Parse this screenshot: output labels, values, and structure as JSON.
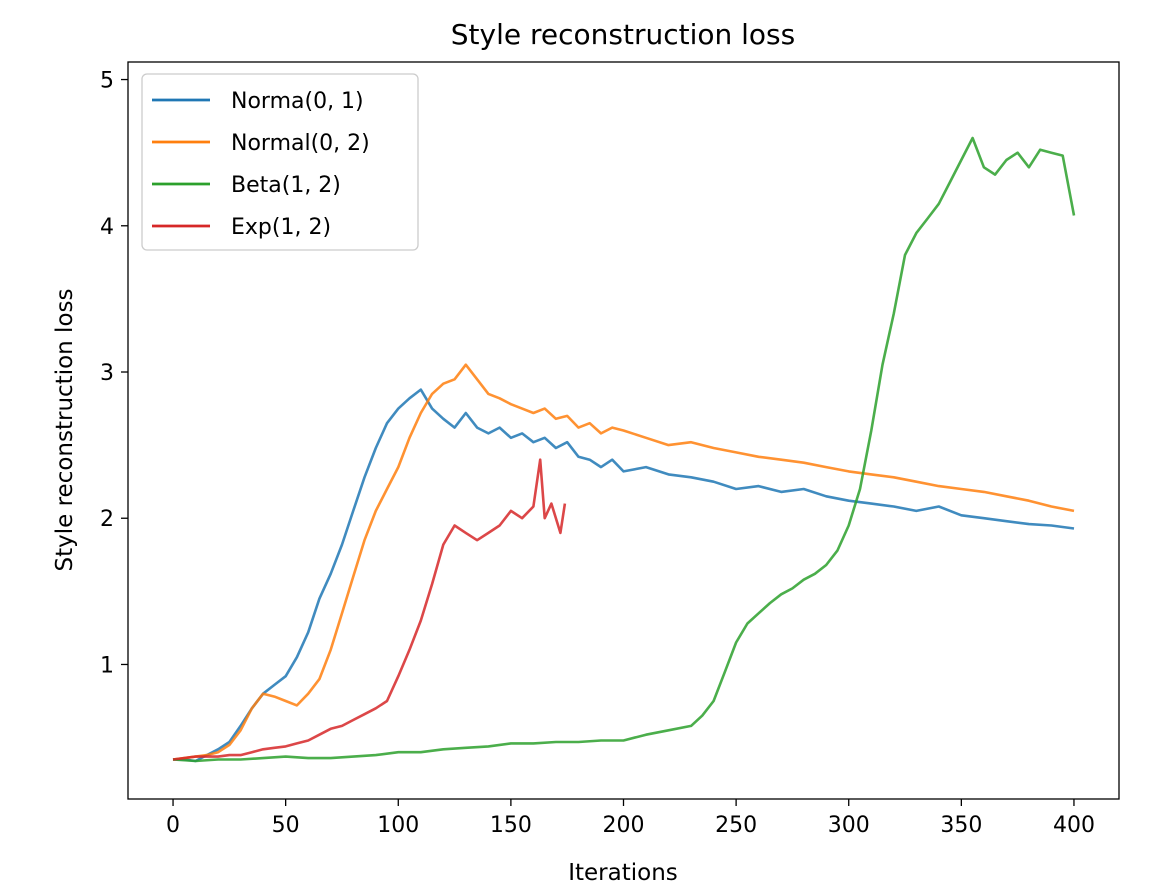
{
  "chart_data": {
    "type": "line",
    "title": "Style reconstruction loss",
    "xlabel": "Iterations",
    "ylabel": "Style reconstruction loss",
    "xlim": [
      -20,
      420
    ],
    "ylim": [
      0.08,
      5.12
    ],
    "xticks": [
      0,
      50,
      100,
      150,
      200,
      250,
      300,
      350,
      400
    ],
    "yticks": [
      1,
      2,
      3,
      4,
      5
    ],
    "grid": false,
    "legend_position": "top-left",
    "series": [
      {
        "name": "Norma(0, 1)",
        "color": "#1f77b4",
        "x": [
          0,
          5,
          10,
          15,
          20,
          25,
          30,
          35,
          40,
          45,
          50,
          55,
          60,
          65,
          70,
          75,
          80,
          85,
          90,
          95,
          100,
          105,
          110,
          115,
          120,
          125,
          130,
          135,
          140,
          145,
          150,
          155,
          160,
          165,
          170,
          175,
          180,
          185,
          190,
          195,
          200,
          210,
          220,
          230,
          240,
          250,
          260,
          270,
          280,
          290,
          300,
          310,
          320,
          330,
          340,
          350,
          360,
          370,
          380,
          390,
          400
        ],
        "y": [
          0.35,
          0.35,
          0.34,
          0.38,
          0.42,
          0.47,
          0.58,
          0.7,
          0.8,
          0.86,
          0.92,
          1.05,
          1.22,
          1.45,
          1.62,
          1.82,
          2.05,
          2.28,
          2.48,
          2.65,
          2.75,
          2.82,
          2.88,
          2.75,
          2.68,
          2.62,
          2.72,
          2.62,
          2.58,
          2.62,
          2.55,
          2.58,
          2.52,
          2.55,
          2.48,
          2.52,
          2.42,
          2.4,
          2.35,
          2.4,
          2.32,
          2.35,
          2.3,
          2.28,
          2.25,
          2.2,
          2.22,
          2.18,
          2.2,
          2.15,
          2.12,
          2.1,
          2.08,
          2.05,
          2.08,
          2.02,
          2.0,
          1.98,
          1.96,
          1.95,
          1.93
        ]
      },
      {
        "name": "Normal(0, 2)",
        "color": "#ff7f0e",
        "x": [
          0,
          5,
          10,
          15,
          20,
          25,
          30,
          35,
          40,
          45,
          50,
          55,
          60,
          65,
          70,
          75,
          80,
          85,
          90,
          95,
          100,
          105,
          110,
          115,
          120,
          125,
          130,
          135,
          140,
          145,
          150,
          155,
          160,
          165,
          170,
          175,
          180,
          185,
          190,
          195,
          200,
          210,
          220,
          230,
          240,
          250,
          260,
          270,
          280,
          290,
          300,
          310,
          320,
          330,
          340,
          350,
          360,
          370,
          380,
          390,
          400
        ],
        "y": [
          0.35,
          0.36,
          0.37,
          0.38,
          0.4,
          0.45,
          0.55,
          0.7,
          0.8,
          0.78,
          0.75,
          0.72,
          0.8,
          0.9,
          1.1,
          1.35,
          1.6,
          1.85,
          2.05,
          2.2,
          2.35,
          2.55,
          2.72,
          2.85,
          2.92,
          2.95,
          3.05,
          2.95,
          2.85,
          2.82,
          2.78,
          2.75,
          2.72,
          2.75,
          2.68,
          2.7,
          2.62,
          2.65,
          2.58,
          2.62,
          2.6,
          2.55,
          2.5,
          2.52,
          2.48,
          2.45,
          2.42,
          2.4,
          2.38,
          2.35,
          2.32,
          2.3,
          2.28,
          2.25,
          2.22,
          2.2,
          2.18,
          2.15,
          2.12,
          2.08,
          2.05
        ]
      },
      {
        "name": "Beta(1, 2)",
        "color": "#2ca02c",
        "x": [
          0,
          10,
          20,
          30,
          40,
          50,
          60,
          70,
          80,
          90,
          100,
          110,
          120,
          130,
          140,
          150,
          160,
          170,
          180,
          190,
          200,
          210,
          220,
          230,
          235,
          240,
          245,
          250,
          255,
          260,
          265,
          270,
          275,
          280,
          285,
          290,
          295,
          300,
          305,
          310,
          315,
          320,
          325,
          330,
          335,
          340,
          345,
          350,
          355,
          360,
          365,
          370,
          375,
          380,
          385,
          390,
          395,
          400
        ],
        "y": [
          0.35,
          0.34,
          0.35,
          0.35,
          0.36,
          0.37,
          0.36,
          0.36,
          0.37,
          0.38,
          0.4,
          0.4,
          0.42,
          0.43,
          0.44,
          0.46,
          0.46,
          0.47,
          0.47,
          0.48,
          0.48,
          0.52,
          0.55,
          0.58,
          0.65,
          0.75,
          0.95,
          1.15,
          1.28,
          1.35,
          1.42,
          1.48,
          1.52,
          1.58,
          1.62,
          1.68,
          1.78,
          1.95,
          2.2,
          2.6,
          3.05,
          3.4,
          3.8,
          3.95,
          4.05,
          4.15,
          4.3,
          4.45,
          4.6,
          4.4,
          4.35,
          4.45,
          4.5,
          4.4,
          4.52,
          4.5,
          4.48,
          4.07
        ]
      },
      {
        "name": "Exp(1, 2)",
        "color": "#d62728",
        "x": [
          0,
          5,
          10,
          15,
          20,
          25,
          30,
          35,
          40,
          45,
          50,
          55,
          60,
          65,
          70,
          75,
          80,
          85,
          90,
          95,
          100,
          105,
          110,
          115,
          120,
          125,
          130,
          135,
          140,
          145,
          150,
          155,
          160,
          163,
          165,
          168,
          170,
          172,
          174
        ],
        "y": [
          0.35,
          0.36,
          0.37,
          0.37,
          0.37,
          0.38,
          0.38,
          0.4,
          0.42,
          0.43,
          0.44,
          0.46,
          0.48,
          0.52,
          0.56,
          0.58,
          0.62,
          0.66,
          0.7,
          0.75,
          0.92,
          1.1,
          1.3,
          1.55,
          1.82,
          1.95,
          1.9,
          1.85,
          1.9,
          1.95,
          2.05,
          2.0,
          2.08,
          2.4,
          2.0,
          2.1,
          2.0,
          1.9,
          2.1
        ]
      }
    ]
  }
}
